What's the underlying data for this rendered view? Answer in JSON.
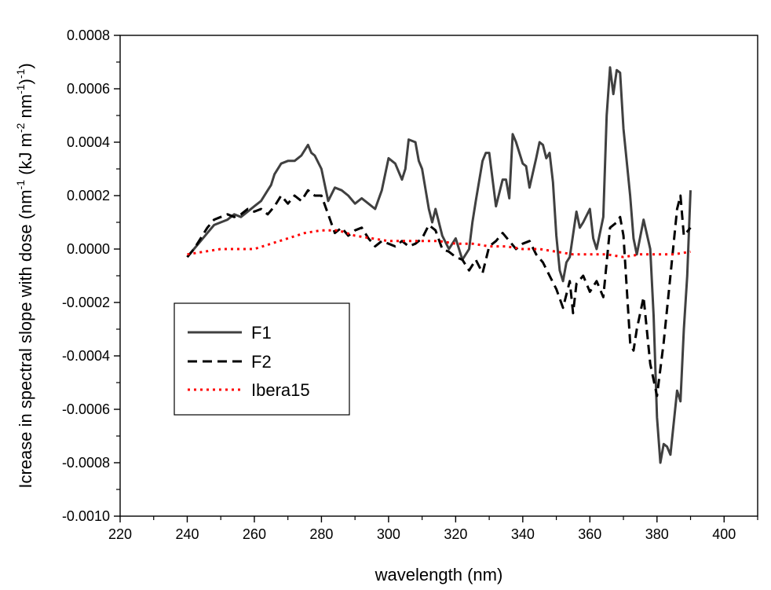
{
  "chart_data": {
    "type": "line",
    "xlabel": "wavelength (nm)",
    "ylabel_parts": {
      "t1": "Icrease in spectral slope with dose (nm",
      "s1": "-1",
      "t2": " (kJ m",
      "s2": "-2",
      "t3": " nm",
      "s3": "-1",
      "t4": ")",
      "s4": "-1",
      "t5": ")"
    },
    "xlim": [
      220,
      410
    ],
    "ylim": [
      -0.001,
      0.0008
    ],
    "xticks": [
      220,
      240,
      260,
      280,
      300,
      320,
      340,
      360,
      380,
      400
    ],
    "xtick_labels": [
      "220",
      "240",
      "260",
      "280",
      "300",
      "320",
      "340",
      "360",
      "380",
      "400"
    ],
    "yticks": [
      -0.001,
      -0.0008,
      -0.0006,
      -0.0004,
      -0.0002,
      0,
      0.0002,
      0.0004,
      0.0006,
      0.0008
    ],
    "ytick_labels": [
      "-0.0010",
      "-0.0008",
      "-0.0006",
      "-0.0004",
      "-0.0002",
      "0.0000",
      "0.0002",
      "0.0004",
      "0.0006",
      "0.0008"
    ],
    "legend_position": "lower-left",
    "series": [
      {
        "name": "F1",
        "color": "#404040",
        "style": "solid",
        "x": [
          240,
          242,
          244,
          246,
          248,
          250,
          252,
          254,
          256,
          258,
          260,
          262,
          264,
          265,
          266,
          268,
          270,
          272,
          274,
          276,
          277,
          278,
          280,
          282,
          284,
          286,
          288,
          290,
          292,
          294,
          296,
          298,
          299,
          300,
          302,
          304,
          305,
          306,
          308,
          309,
          310,
          312,
          313,
          314,
          316,
          318,
          320,
          322,
          324,
          325,
          326,
          328,
          329,
          330,
          332,
          334,
          335,
          336,
          337,
          338,
          340,
          341,
          342,
          344,
          345,
          346,
          347,
          348,
          349,
          350,
          351,
          352,
          353,
          354,
          356,
          357,
          358,
          360,
          361,
          362,
          364,
          365,
          366,
          367,
          368,
          369,
          370,
          372,
          373,
          374,
          376,
          378,
          379,
          380,
          381,
          382,
          383,
          384,
          386,
          387,
          388,
          389,
          390
        ],
        "y": [
          -3e-05,
          0.0,
          3e-05,
          6e-05,
          9e-05,
          0.0001,
          0.00011,
          0.00013,
          0.00012,
          0.00014,
          0.00016,
          0.00018,
          0.00022,
          0.00024,
          0.00028,
          0.00032,
          0.00033,
          0.00033,
          0.00035,
          0.00039,
          0.00036,
          0.00035,
          0.0003,
          0.00018,
          0.00023,
          0.00022,
          0.0002,
          0.00017,
          0.00019,
          0.00017,
          0.00015,
          0.00022,
          0.00028,
          0.00034,
          0.00032,
          0.00026,
          0.0003,
          0.00041,
          0.0004,
          0.00033,
          0.0003,
          0.00015,
          0.0001,
          0.00015,
          5e-05,
          0.0,
          4e-05,
          -4e-05,
          0.0,
          0.0001,
          0.00018,
          0.00033,
          0.00036,
          0.00036,
          0.00016,
          0.00026,
          0.00026,
          0.00019,
          0.00043,
          0.0004,
          0.00032,
          0.00031,
          0.00023,
          0.00034,
          0.0004,
          0.00039,
          0.00034,
          0.00036,
          0.00025,
          5e-05,
          -8e-05,
          -0.00012,
          -5e-05,
          -3e-05,
          0.00014,
          8e-05,
          0.0001,
          0.00015,
          4e-05,
          0.0,
          0.00012,
          0.0005,
          0.00068,
          0.00058,
          0.00067,
          0.00066,
          0.00045,
          0.0002,
          4e-05,
          -2e-05,
          0.00011,
          0.0,
          -0.00025,
          -0.00063,
          -0.0008,
          -0.00073,
          -0.00074,
          -0.00077,
          -0.00053,
          -0.00057,
          -0.0003,
          -0.0001,
          0.00022
        ]
      },
      {
        "name": "F2",
        "color": "#000000",
        "style": "dashed",
        "x": [
          240,
          242,
          244,
          246,
          248,
          250,
          252,
          254,
          256,
          258,
          260,
          262,
          264,
          266,
          268,
          270,
          272,
          274,
          276,
          278,
          280,
          282,
          284,
          286,
          288,
          290,
          292,
          294,
          296,
          298,
          300,
          302,
          304,
          306,
          308,
          310,
          312,
          314,
          316,
          318,
          320,
          322,
          324,
          326,
          328,
          330,
          332,
          334,
          336,
          338,
          340,
          342,
          344,
          346,
          348,
          350,
          352,
          354,
          355,
          356,
          358,
          360,
          362,
          364,
          366,
          368,
          369,
          370,
          372,
          373,
          374,
          376,
          378,
          380,
          382,
          384,
          386,
          387,
          388,
          390
        ],
        "y": [
          -3e-05,
          0.0,
          4e-05,
          8e-05,
          0.00011,
          0.00012,
          0.00013,
          0.00012,
          0.00013,
          0.00015,
          0.00014,
          0.00015,
          0.00013,
          0.00016,
          0.0002,
          0.00017,
          0.0002,
          0.00018,
          0.00022,
          0.0002,
          0.0002,
          0.00013,
          6e-05,
          8e-05,
          5e-05,
          7e-05,
          8e-05,
          4e-05,
          1e-05,
          3e-05,
          2e-05,
          1e-05,
          3e-05,
          1e-05,
          2e-05,
          4e-05,
          9e-05,
          7e-05,
          0.0,
          -1e-05,
          -3e-05,
          -4e-05,
          -8e-05,
          -4e-05,
          -9e-05,
          1e-05,
          3e-05,
          6e-05,
          3e-05,
          0.0,
          2e-05,
          3e-05,
          -2e-05,
          -5e-05,
          -0.0001,
          -0.00015,
          -0.00022,
          -0.00012,
          -0.00024,
          -0.00013,
          -0.0001,
          -0.00016,
          -0.00012,
          -0.00018,
          8e-05,
          0.0001,
          0.00012,
          5e-05,
          -0.00035,
          -0.00038,
          -0.0003,
          -0.00018,
          -0.00043,
          -0.00055,
          -0.00035,
          -0.0001,
          0.00015,
          0.0002,
          5e-05,
          8e-05
        ]
      },
      {
        "name": "Ibera15",
        "color": "#ff0000",
        "style": "dotted",
        "x": [
          240,
          245,
          250,
          255,
          260,
          265,
          270,
          275,
          280,
          285,
          290,
          295,
          300,
          305,
          310,
          315,
          320,
          325,
          330,
          335,
          340,
          345,
          350,
          355,
          360,
          365,
          370,
          375,
          380,
          385,
          390
        ],
        "y": [
          -2e-05,
          -1e-05,
          0.0,
          0.0,
          0.0,
          2e-05,
          4e-05,
          6e-05,
          7e-05,
          7e-05,
          5e-05,
          4e-05,
          3e-05,
          3e-05,
          3e-05,
          3e-05,
          2e-05,
          2e-05,
          1e-05,
          1e-05,
          0.0,
          0.0,
          -1e-05,
          -2e-05,
          -2e-05,
          -2e-05,
          -3e-05,
          -2e-05,
          -2e-05,
          -2e-05,
          -1e-05
        ]
      }
    ]
  }
}
